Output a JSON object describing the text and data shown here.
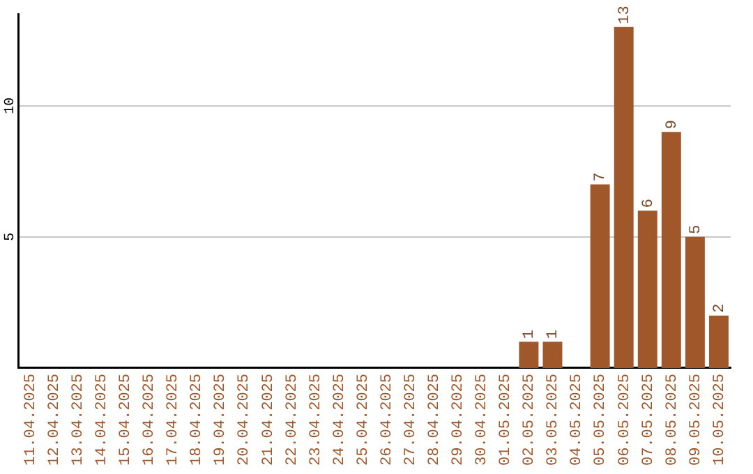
{
  "chart_data": {
    "type": "bar",
    "categories": [
      "11.04.2025",
      "12.04.2025",
      "13.04.2025",
      "14.04.2025",
      "15.04.2025",
      "16.04.2025",
      "17.04.2025",
      "18.04.2025",
      "19.04.2025",
      "20.04.2025",
      "21.04.2025",
      "22.04.2025",
      "23.04.2025",
      "24.04.2025",
      "25.04.2025",
      "26.04.2025",
      "27.04.2025",
      "28.04.2025",
      "29.04.2025",
      "30.04.2025",
      "01.05.2025",
      "02.05.2025",
      "03.05.2025",
      "04.05.2025",
      "05.05.2025",
      "06.05.2025",
      "07.05.2025",
      "08.05.2025",
      "09.05.2025",
      "10.05.2025"
    ],
    "values": [
      0,
      0,
      0,
      0,
      0,
      0,
      0,
      0,
      0,
      0,
      0,
      0,
      0,
      0,
      0,
      0,
      0,
      0,
      0,
      0,
      0,
      1,
      1,
      0,
      7,
      13,
      6,
      9,
      5,
      2
    ],
    "value_labels": [
      null,
      null,
      null,
      null,
      null,
      null,
      null,
      null,
      null,
      null,
      null,
      null,
      null,
      null,
      null,
      null,
      null,
      null,
      null,
      null,
      null,
      "1",
      "1",
      null,
      "7",
      "13",
      "6",
      "9",
      "5",
      "2"
    ],
    "color": "#a0572a",
    "ylim": [
      0,
      13.5
    ],
    "yticks": [
      5,
      10
    ],
    "grid": "y",
    "legend": false
  }
}
